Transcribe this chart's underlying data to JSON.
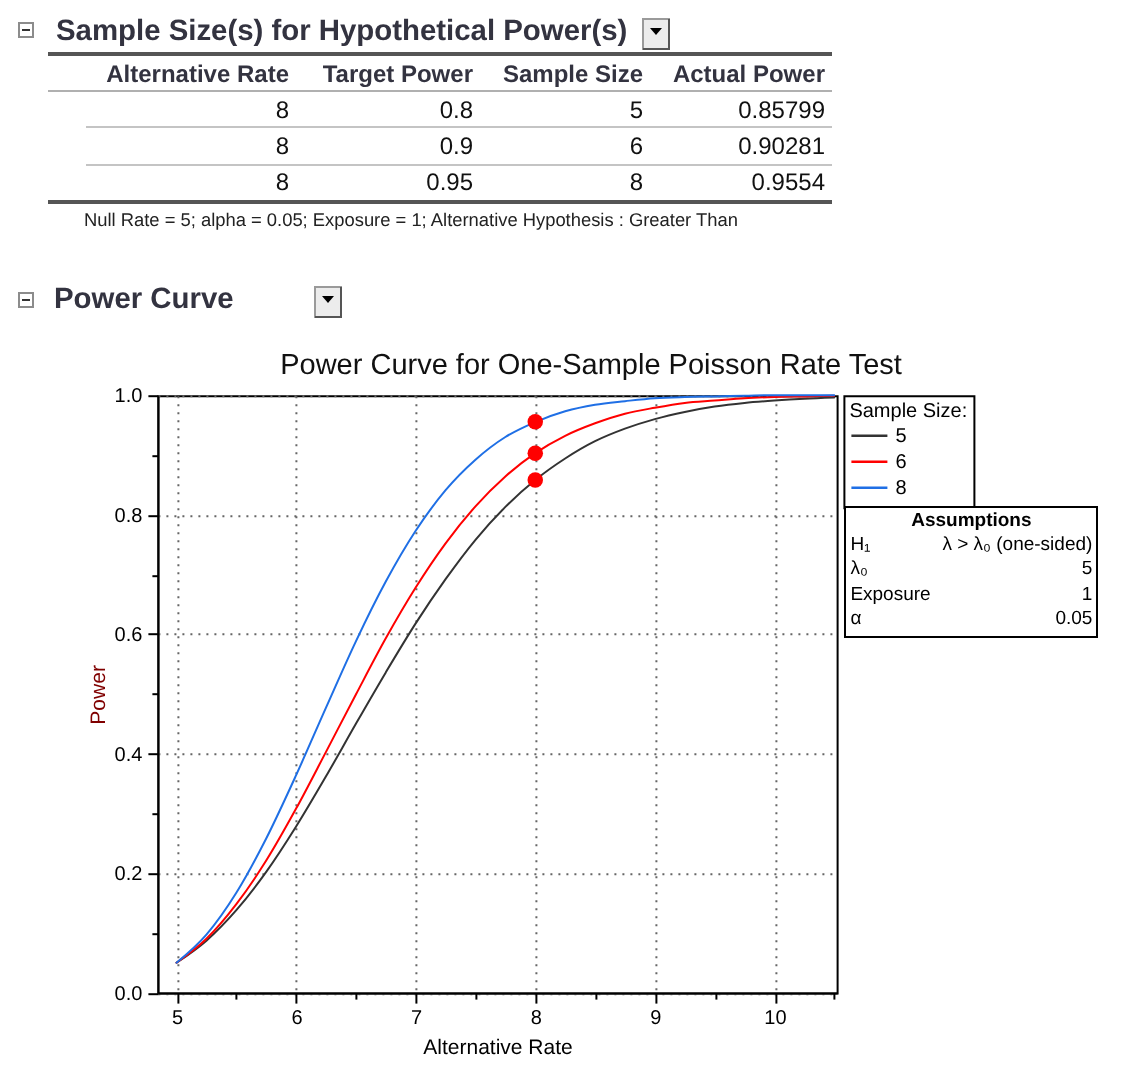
{
  "chart_data": [
    {
      "type": "other",
      "title": "Sample Size(s) for Hypothetical Power(s)",
      "annotations": [
        "Alternative Rate",
        "Target Power",
        "Sample Size",
        "Actual Power",
        "8",
        "0.8",
        "5",
        "0.85799",
        "8",
        "0.9",
        "6",
        "0.90281",
        "8",
        "0.95",
        "8",
        "0.9554",
        "Null Rate = 5; alpha = 0.05; Exposure = 1; Alternative Hypothesis : Greater Than"
      ]
    },
    {
      "type": "line",
      "title": "Power Curve",
      "subtitle": "Power Curve for One-Sample Poisson Rate Test",
      "xlabel": "Alternative Rate",
      "ylabel": "Power",
      "legend_title": "Sample Size:",
      "legend": "right",
      "grid": true,
      "xlim": [
        4.84,
        10.52
      ],
      "xticks": [
        5,
        {
          "value": 5.5,
          "label": null
        },
        6,
        {
          "value": 6.5,
          "label": null
        },
        7,
        {
          "value": 7.5,
          "label": null
        },
        8,
        {
          "value": 8.5,
          "label": null
        },
        9,
        {
          "value": 9.5,
          "label": null
        },
        10,
        {
          "value": 10.5,
          "label": null
        }
      ],
      "ylim": [
        0,
        1
      ],
      "yticks": [
        {
          "value": 0,
          "label": "0.0"
        },
        {
          "value": 0.1,
          "label": null
        },
        {
          "value": 0.2,
          "label": "0.2"
        },
        {
          "value": 0.3,
          "label": null
        },
        {
          "value": 0.4,
          "label": "0.4"
        },
        {
          "value": 0.5,
          "label": null
        },
        {
          "value": 0.6,
          "label": "0.6"
        },
        {
          "value": 0.7,
          "label": null
        },
        {
          "value": 0.8,
          "label": "0.8"
        },
        {
          "value": 0.9,
          "label": null
        },
        {
          "value": 1,
          "label": "1.0"
        }
      ],
      "x": [
        5,
        5.25,
        5.5,
        5.75,
        6,
        6.25,
        6.5,
        6.75,
        7,
        7.25,
        7.5,
        7.75,
        8,
        8.25,
        8.5,
        8.75,
        9,
        9.25,
        9.5,
        9.75,
        10,
        10.25,
        10.5
      ],
      "series": [
        {
          "name": "5",
          "color": "#333333",
          "values": [
            0.05,
            0.087,
            0.138,
            0.202,
            0.278,
            0.362,
            0.45,
            0.536,
            0.618,
            0.692,
            0.758,
            0.813,
            0.858,
            0.894,
            0.923,
            0.944,
            0.96,
            0.972,
            0.981,
            0.987,
            0.991,
            0.994,
            0.996
          ]
        },
        {
          "name": "6",
          "color": "#ff0000",
          "values": [
            0.05,
            0.09,
            0.148,
            0.221,
            0.308,
            0.403,
            0.499,
            0.593,
            0.678,
            0.752,
            0.814,
            0.864,
            0.903,
            0.932,
            0.953,
            0.969,
            0.979,
            0.987,
            0.991,
            0.995,
            0.997,
            0.998,
            0.999
          ]
        },
        {
          "name": "8",
          "color": "#1f6fe5",
          "values": [
            0.05,
            0.097,
            0.167,
            0.258,
            0.364,
            0.477,
            0.588,
            0.688,
            0.773,
            0.841,
            0.892,
            0.93,
            0.955,
            0.973,
            0.984,
            0.99,
            0.995,
            0.997,
            0.998,
            0.999,
            1,
            1,
            1
          ]
        },
        {
          "type": "scatter",
          "color": "#ff0000",
          "marker": "circle",
          "values": [
            null,
            null,
            null,
            null,
            null,
            null,
            null,
            null,
            null,
            null,
            null,
            null,
            0.85799,
            null,
            null,
            null,
            null,
            null,
            null,
            null,
            null,
            null,
            null
          ]
        },
        {
          "type": "scatter",
          "color": "#ff0000",
          "marker": "circle",
          "values": [
            null,
            null,
            null,
            null,
            null,
            null,
            null,
            null,
            null,
            null,
            null,
            null,
            0.90281,
            null,
            null,
            null,
            null,
            null,
            null,
            null,
            null,
            null,
            null
          ]
        },
        {
          "type": "scatter",
          "color": "#ff0000",
          "marker": "circle",
          "values": [
            null,
            null,
            null,
            null,
            null,
            null,
            null,
            null,
            null,
            null,
            null,
            null,
            0.9554,
            null,
            null,
            null,
            null,
            null,
            null,
            null,
            null,
            null,
            null
          ]
        }
      ],
      "annotations": [
        "Assumptions",
        "H₁",
        "λ > λ₀ (one-sided)",
        "λ₀",
        "5",
        "Exposure",
        "1",
        "α",
        "0.05"
      ]
    }
  ]
}
